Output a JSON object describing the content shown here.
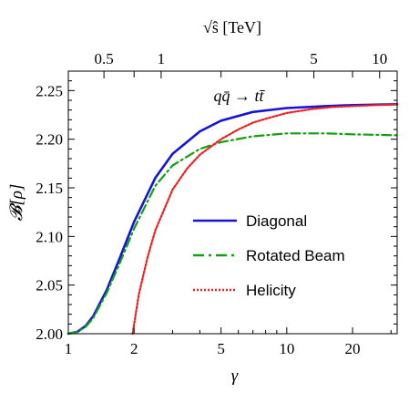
{
  "chart_data": {
    "type": "line",
    "xscale": "log",
    "xlabel": "γ",
    "ylabel": "𝓑[ρ]",
    "top_axis_label": "√ŝ [TeV]",
    "annotation": "qq̄ → tt̄",
    "xlim": [
      1,
      32
    ],
    "ylim": [
      2.0,
      2.27
    ],
    "x_ticks": [
      1,
      2,
      5,
      10,
      20
    ],
    "x_tick_labels": [
      "1",
      "2",
      "5",
      "10",
      "20"
    ],
    "y_ticks": [
      2.0,
      2.05,
      2.1,
      2.15,
      2.2,
      2.25
    ],
    "y_tick_labels": [
      "2.00",
      "2.05",
      "2.10",
      "2.15",
      "2.20",
      "2.25"
    ],
    "top_ticks": [
      0.5,
      1,
      5,
      10
    ],
    "top_tick_labels": [
      "0.5",
      "1",
      "5",
      "10"
    ],
    "top_tick_gamma": [
      1.456,
      2.66,
      13.3,
      26.6
    ],
    "legend_position": "right-middle",
    "series": [
      {
        "name": "Diagonal",
        "color": "#1414d8",
        "style": "solid",
        "x": [
          1.0,
          1.1,
          1.2,
          1.3,
          1.5,
          1.7,
          2.0,
          2.5,
          3.0,
          4.0,
          5.0,
          7.0,
          10.0,
          15.0,
          20.0,
          32.0
        ],
        "y": [
          2.0,
          2.002,
          2.008,
          2.018,
          2.045,
          2.075,
          2.115,
          2.16,
          2.185,
          2.208,
          2.219,
          2.228,
          2.232,
          2.234,
          2.235,
          2.236
        ]
      },
      {
        "name": "Rotated Beam",
        "color": "#10a010",
        "style": "dashdot",
        "x": [
          1.0,
          1.1,
          1.2,
          1.3,
          1.5,
          1.7,
          2.0,
          2.5,
          3.0,
          4.0,
          5.0,
          7.0,
          10.0,
          15.0,
          20.0,
          32.0
        ],
        "y": [
          2.0,
          2.002,
          2.007,
          2.016,
          2.042,
          2.07,
          2.108,
          2.152,
          2.173,
          2.19,
          2.197,
          2.203,
          2.206,
          2.206,
          2.205,
          2.204
        ]
      },
      {
        "name": "Helicity",
        "color": "#ee2020",
        "style": "dotted",
        "x": [
          1.97,
          2.1,
          2.3,
          2.5,
          3.0,
          3.5,
          4.0,
          5.0,
          6.0,
          7.0,
          8.0,
          10.0,
          13.0,
          16.0,
          20.0,
          32.0
        ],
        "y": [
          2.0,
          2.04,
          2.078,
          2.106,
          2.148,
          2.17,
          2.184,
          2.2,
          2.21,
          2.217,
          2.221,
          2.227,
          2.231,
          2.233,
          2.234,
          2.236
        ]
      }
    ]
  }
}
